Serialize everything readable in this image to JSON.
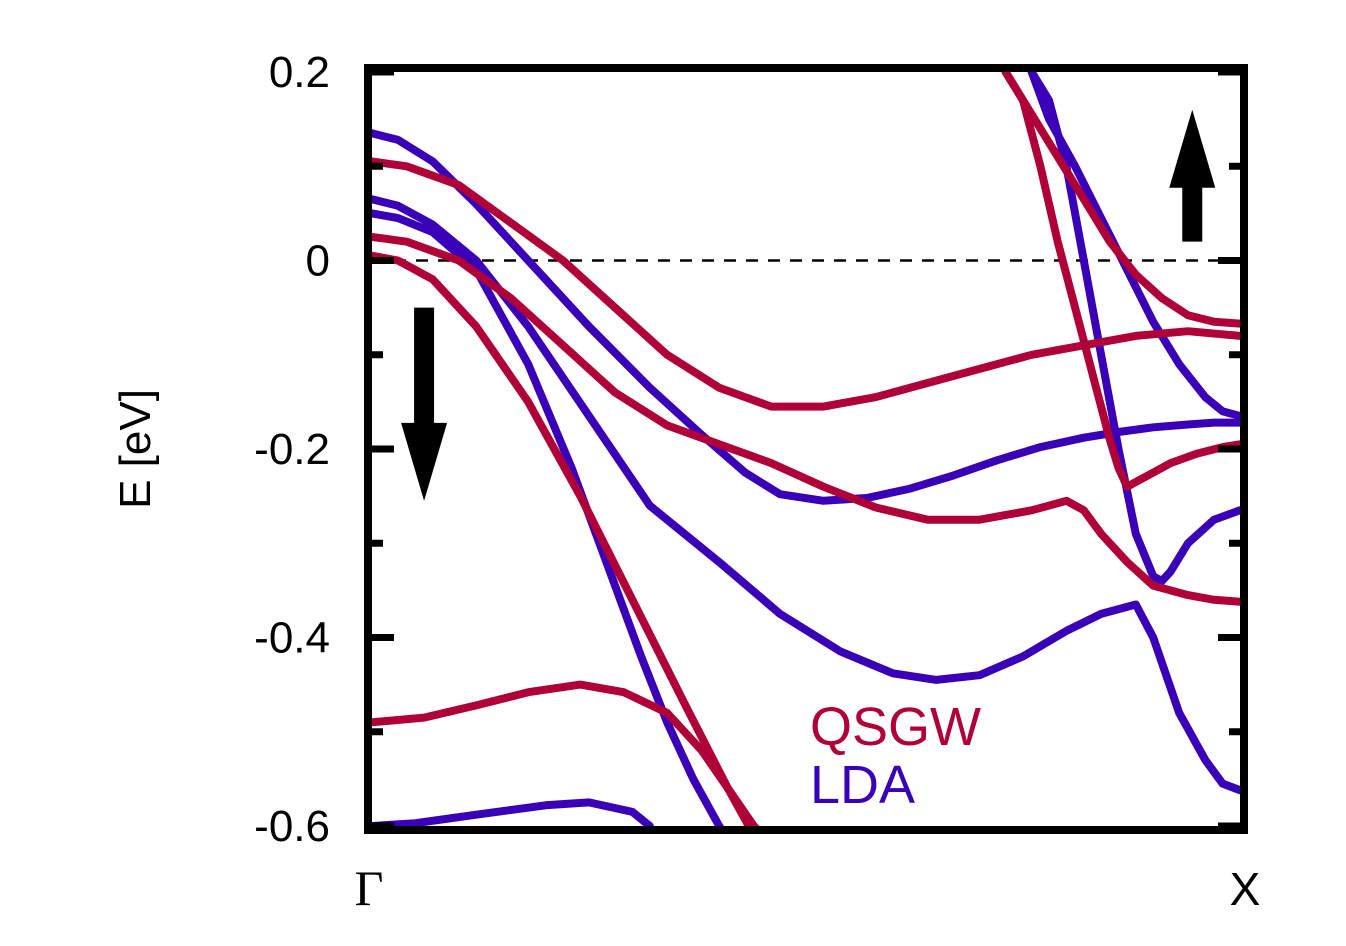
{
  "chart_data": {
    "type": "line",
    "title": "",
    "xlabel": "",
    "ylabel": "E [eV]",
    "xlim": [
      0,
      1
    ],
    "ylim": [
      -0.6,
      0.2
    ],
    "yticks": [
      {
        "value": 0.2,
        "label": "0.2"
      },
      {
        "value": 0.0,
        "label": "0"
      },
      {
        "value": -0.2,
        "label": "-0.2"
      },
      {
        "value": -0.4,
        "label": "-0.4"
      },
      {
        "value": -0.6,
        "label": "-0.6"
      }
    ],
    "xticks": [
      {
        "value": 0,
        "label": "Γ"
      },
      {
        "value": 1,
        "label": "X"
      }
    ],
    "fermi_level": 0.0,
    "colors": {
      "QSGW": "#b00038",
      "LDA": "#3a00b8",
      "axis": "#000000"
    },
    "legend": [
      {
        "name": "QSGW",
        "color": "#b00038"
      },
      {
        "name": "LDA",
        "color": "#3a00b8"
      }
    ],
    "arrows": [
      {
        "name": "spin-down",
        "x": 0.06,
        "y_from": -0.05,
        "y_to": -0.255
      },
      {
        "name": "spin-up",
        "x": 0.945,
        "y_from": 0.02,
        "y_to": 0.16
      }
    ],
    "series": [
      {
        "name": "LDA",
        "band": 1,
        "x": [
          0,
          0.03,
          0.07,
          0.12,
          0.18,
          0.25,
          0.32,
          0.38,
          0.43,
          0.47,
          0.52,
          0.57,
          0.62,
          0.67,
          0.72,
          0.77,
          0.82,
          0.86,
          0.9,
          0.94,
          0.97,
          1.0
        ],
        "y": [
          0.135,
          0.128,
          0.105,
          0.06,
          0.0,
          -0.07,
          -0.135,
          -0.185,
          -0.225,
          -0.248,
          -0.255,
          -0.252,
          -0.242,
          -0.228,
          -0.212,
          -0.198,
          -0.188,
          -0.182,
          -0.177,
          -0.174,
          -0.172,
          -0.172
        ]
      },
      {
        "name": "LDA",
        "band": 2,
        "x": [
          0,
          0.03,
          0.07,
          0.12,
          0.18,
          0.25,
          0.32,
          0.4,
          0.47,
          0.54,
          0.6,
          0.65,
          0.7,
          0.75,
          0.8,
          0.84,
          0.88,
          0.9,
          0.93,
          0.96,
          0.98,
          1.0
        ],
        "y": [
          0.065,
          0.058,
          0.038,
          0.0,
          -0.07,
          -0.165,
          -0.26,
          -0.32,
          -0.375,
          -0.415,
          -0.438,
          -0.445,
          -0.44,
          -0.42,
          -0.393,
          -0.375,
          -0.365,
          -0.4,
          -0.48,
          -0.53,
          -0.555,
          -0.562
        ]
      },
      {
        "name": "LDA",
        "band": 3,
        "x": [
          0,
          0.03,
          0.07,
          0.12,
          0.18,
          0.23,
          0.27,
          0.31,
          0.34,
          0.37,
          0.4,
          0.41
        ],
        "y": [
          0.05,
          0.045,
          0.03,
          -0.01,
          -0.11,
          -0.22,
          -0.32,
          -0.42,
          -0.49,
          -0.55,
          -0.6,
          -0.615
        ]
      },
      {
        "name": "LDA",
        "band": 4,
        "x": [
          0,
          0.05,
          0.12,
          0.2,
          0.25,
          0.3,
          0.32
        ],
        "y": [
          -0.6,
          -0.597,
          -0.588,
          -0.578,
          -0.575,
          -0.585,
          -0.6
        ]
      },
      {
        "name": "LDA",
        "band": 5,
        "x": [
          0.76,
          0.78,
          0.8,
          0.82,
          0.84,
          0.86,
          0.88,
          0.9,
          0.91,
          0.92,
          0.94,
          0.97,
          1.0
        ],
        "y": [
          0.2,
          0.17,
          0.1,
          0.0,
          -0.1,
          -0.2,
          -0.29,
          -0.335,
          -0.34,
          -0.33,
          -0.3,
          -0.275,
          -0.265
        ]
      },
      {
        "name": "LDA",
        "band": 6,
        "x": [
          0.76,
          0.78,
          0.81,
          0.84,
          0.87,
          0.9,
          0.93,
          0.96,
          0.98,
          1.0
        ],
        "y": [
          0.2,
          0.15,
          0.1,
          0.045,
          -0.01,
          -0.065,
          -0.11,
          -0.145,
          -0.16,
          -0.165
        ]
      },
      {
        "name": "QSGW",
        "band": 1,
        "x": [
          0,
          0.04,
          0.1,
          0.16,
          0.22,
          0.28,
          0.34,
          0.4,
          0.46,
          0.52,
          0.58,
          0.64,
          0.7,
          0.76,
          0.82,
          0.88,
          0.94,
          1.0
        ],
        "y": [
          0.105,
          0.1,
          0.08,
          0.04,
          0.0,
          -0.05,
          -0.1,
          -0.135,
          -0.155,
          -0.155,
          -0.145,
          -0.13,
          -0.115,
          -0.1,
          -0.09,
          -0.08,
          -0.075,
          -0.08
        ]
      },
      {
        "name": "QSGW",
        "band": 2,
        "x": [
          0,
          0.04,
          0.1,
          0.16,
          0.22,
          0.28,
          0.34,
          0.4,
          0.46,
          0.52,
          0.58,
          0.64,
          0.7,
          0.76,
          0.8,
          0.82,
          0.84,
          0.87,
          0.9,
          0.94,
          0.97,
          1.0
        ],
        "y": [
          0.025,
          0.02,
          0.0,
          -0.04,
          -0.09,
          -0.14,
          -0.175,
          -0.195,
          -0.215,
          -0.24,
          -0.262,
          -0.275,
          -0.275,
          -0.265,
          -0.255,
          -0.265,
          -0.29,
          -0.32,
          -0.345,
          -0.355,
          -0.36,
          -0.362
        ]
      },
      {
        "name": "QSGW",
        "band": 3,
        "x": [
          0,
          0.03,
          0.07,
          0.12,
          0.18,
          0.24,
          0.3,
          0.36,
          0.41,
          0.44,
          0.46
        ],
        "y": [
          0.005,
          0.0,
          -0.02,
          -0.07,
          -0.15,
          -0.25,
          -0.36,
          -0.47,
          -0.56,
          -0.61,
          -0.635
        ]
      },
      {
        "name": "QSGW",
        "band": 4,
        "x": [
          0,
          0.06,
          0.12,
          0.18,
          0.24,
          0.29,
          0.34,
          0.38,
          0.41,
          0.44,
          0.46
        ],
        "y": [
          -0.49,
          -0.485,
          -0.472,
          -0.458,
          -0.45,
          -0.458,
          -0.48,
          -0.52,
          -0.56,
          -0.6,
          -0.62
        ]
      },
      {
        "name": "QSGW",
        "band": 5,
        "x": [
          0.73,
          0.75,
          0.77,
          0.79,
          0.81,
          0.83,
          0.85,
          0.86,
          0.87,
          0.88,
          0.9,
          0.92,
          0.95,
          0.98,
          1.0
        ],
        "y": [
          0.2,
          0.17,
          0.1,
          0.02,
          -0.05,
          -0.12,
          -0.19,
          -0.22,
          -0.24,
          -0.235,
          -0.225,
          -0.215,
          -0.205,
          -0.198,
          -0.195
        ]
      },
      {
        "name": "QSGW",
        "band": 6,
        "x": [
          0.73,
          0.76,
          0.79,
          0.82,
          0.85,
          0.88,
          0.91,
          0.94,
          0.97,
          1.0
        ],
        "y": [
          0.2,
          0.155,
          0.11,
          0.065,
          0.02,
          -0.015,
          -0.04,
          -0.058,
          -0.065,
          -0.067
        ]
      }
    ]
  }
}
